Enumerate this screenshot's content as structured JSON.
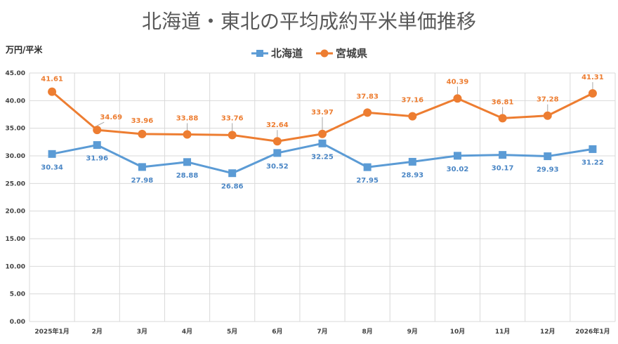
{
  "chart_data": {
    "type": "line",
    "title": "北海道・東北の平均成約平米単価推移",
    "ylabel": "万円/平米",
    "xlabel": "",
    "categories": [
      "2025年1月",
      "2月",
      "3月",
      "4月",
      "5月",
      "6月",
      "7月",
      "8月",
      "9月",
      "10月",
      "11月",
      "12月",
      "2026年1月"
    ],
    "ylim": [
      0,
      45
    ],
    "ytick_step": 5,
    "ytick_labels": [
      "0.00",
      "5.00",
      "10.00",
      "15.00",
      "20.00",
      "25.00",
      "30.00",
      "35.00",
      "40.00",
      "45.00"
    ],
    "grid": true,
    "legend_position": "top-center",
    "series": [
      {
        "name": "北海道",
        "color": "#5b9bd5",
        "marker": "square",
        "label_color": "#4a86c5",
        "values": [
          30.34,
          31.96,
          27.98,
          28.88,
          26.86,
          30.52,
          32.25,
          27.95,
          28.93,
          30.02,
          30.17,
          29.93,
          31.22
        ],
        "labels": [
          "30.34",
          "31.96",
          "27.98",
          "28.88",
          "26.86",
          "30.52",
          "32.25",
          "27.95",
          "28.93",
          "30.02",
          "30.17",
          "29.93",
          "31.22"
        ]
      },
      {
        "name": "宮城県",
        "color": "#ed7d31",
        "marker": "circle",
        "label_color": "#ed7d31",
        "values": [
          41.61,
          34.69,
          33.96,
          33.88,
          33.76,
          32.64,
          33.97,
          37.83,
          37.16,
          40.39,
          36.81,
          37.28,
          41.31
        ],
        "labels": [
          "41.61",
          "34.69",
          "33.96",
          "33.88",
          "33.76",
          "32.64",
          "33.97",
          "37.83",
          "37.16",
          "40.39",
          "36.81",
          "37.28",
          "41.31"
        ]
      }
    ]
  }
}
